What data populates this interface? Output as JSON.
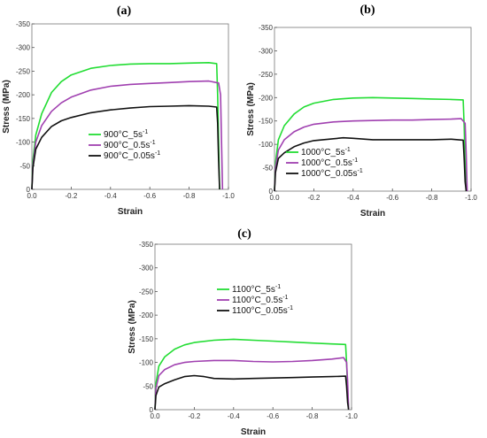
{
  "chart_data": [
    {
      "panel_label": "(a)",
      "type": "line",
      "xlabel": "Strain",
      "ylabel": "Stress (MPa)",
      "xlim": [
        0,
        -1.0
      ],
      "ylim": [
        0,
        -350
      ],
      "xticks": [
        0.0,
        -0.2,
        -0.4,
        -0.6,
        -0.8,
        -1.0
      ],
      "xtick_labels": [
        "0.0",
        "-0.2",
        "-0.4",
        "-0.6",
        "-0.8",
        "-1.0"
      ],
      "yticks": [
        0,
        -50,
        -100,
        -150,
        -200,
        -250,
        -300,
        -350
      ],
      "ytick_labels": [
        "0",
        "-50",
        "-100",
        "-150",
        "-200",
        "-250",
        "-300",
        "-350"
      ],
      "legend_position": "center-left",
      "series": [
        {
          "name": "900°C_5s",
          "name_sup": "-1",
          "color": "#22dd33",
          "points": [
            [
              0.0,
              0
            ],
            [
              -0.005,
              -60
            ],
            [
              -0.02,
              -115
            ],
            [
              -0.05,
              -160
            ],
            [
              -0.1,
              -205
            ],
            [
              -0.15,
              -228
            ],
            [
              -0.2,
              -242
            ],
            [
              -0.3,
              -256
            ],
            [
              -0.4,
              -262
            ],
            [
              -0.5,
              -265
            ],
            [
              -0.6,
              -266
            ],
            [
              -0.7,
              -266
            ],
            [
              -0.8,
              -267
            ],
            [
              -0.9,
              -268
            ],
            [
              -0.94,
              -266
            ],
            [
              -0.945,
              -200
            ],
            [
              -0.95,
              -100
            ],
            [
              -0.955,
              0
            ]
          ]
        },
        {
          "name": "900°C_0.5s",
          "name_sup": "-1",
          "color": "#a040b0",
          "points": [
            [
              0.0,
              0
            ],
            [
              -0.005,
              -50
            ],
            [
              -0.02,
              -100
            ],
            [
              -0.05,
              -135
            ],
            [
              -0.1,
              -165
            ],
            [
              -0.15,
              -183
            ],
            [
              -0.2,
              -195
            ],
            [
              -0.3,
              -210
            ],
            [
              -0.4,
              -218
            ],
            [
              -0.5,
              -222
            ],
            [
              -0.6,
              -224
            ],
            [
              -0.7,
              -226
            ],
            [
              -0.8,
              -228
            ],
            [
              -0.9,
              -229
            ],
            [
              -0.95,
              -225
            ],
            [
              -0.96,
              -200
            ],
            [
              -0.965,
              -100
            ],
            [
              -0.97,
              0
            ]
          ]
        },
        {
          "name": "900°C_0.05s",
          "name_sup": "-1",
          "color": "#111111",
          "points": [
            [
              0.0,
              0
            ],
            [
              -0.005,
              -45
            ],
            [
              -0.02,
              -85
            ],
            [
              -0.05,
              -110
            ],
            [
              -0.1,
              -133
            ],
            [
              -0.15,
              -145
            ],
            [
              -0.2,
              -152
            ],
            [
              -0.3,
              -162
            ],
            [
              -0.4,
              -168
            ],
            [
              -0.5,
              -172
            ],
            [
              -0.6,
              -175
            ],
            [
              -0.7,
              -176
            ],
            [
              -0.8,
              -177
            ],
            [
              -0.9,
              -176
            ],
            [
              -0.94,
              -174
            ],
            [
              -0.945,
              -140
            ],
            [
              -0.95,
              -60
            ],
            [
              -0.955,
              0
            ]
          ]
        }
      ]
    },
    {
      "panel_label": "(b)",
      "type": "line",
      "xlabel": "Strain",
      "ylabel": "Stress (MPa)",
      "xlim": [
        0,
        -1.0
      ],
      "ylim": [
        0,
        -350
      ],
      "xticks": [
        0.0,
        -0.2,
        -0.4,
        -0.6,
        -0.8,
        -1.0
      ],
      "xtick_labels": [
        "0.0",
        "-0.2",
        "-0.4",
        "-0.6",
        "-0.8",
        "-1.0"
      ],
      "yticks": [
        0,
        -50,
        -100,
        -150,
        -200,
        -250,
        -300,
        -350
      ],
      "ytick_labels": [
        "0",
        "-50",
        "-100",
        "-150",
        "-200",
        "-250",
        "-300",
        "-350"
      ],
      "legend_position": "bottom-right",
      "series": [
        {
          "name": "1000°C_5s",
          "name_sup": "-1",
          "color": "#22dd33",
          "points": [
            [
              0.0,
              0
            ],
            [
              -0.005,
              -60
            ],
            [
              -0.02,
              -110
            ],
            [
              -0.05,
              -140
            ],
            [
              -0.1,
              -165
            ],
            [
              -0.15,
              -180
            ],
            [
              -0.2,
              -188
            ],
            [
              -0.3,
              -196
            ],
            [
              -0.4,
              -199
            ],
            [
              -0.5,
              -200
            ],
            [
              -0.6,
              -199
            ],
            [
              -0.7,
              -198
            ],
            [
              -0.8,
              -197
            ],
            [
              -0.9,
              -196
            ],
            [
              -0.96,
              -195
            ],
            [
              -0.965,
              -140
            ],
            [
              -0.97,
              -60
            ],
            [
              -0.975,
              0
            ]
          ]
        },
        {
          "name": "1000°C_0.5s",
          "name_sup": "-1",
          "color": "#a040b0",
          "points": [
            [
              0.0,
              0
            ],
            [
              -0.005,
              -50
            ],
            [
              -0.02,
              -88
            ],
            [
              -0.05,
              -110
            ],
            [
              -0.1,
              -127
            ],
            [
              -0.15,
              -137
            ],
            [
              -0.2,
              -143
            ],
            [
              -0.3,
              -148
            ],
            [
              -0.4,
              -150
            ],
            [
              -0.5,
              -151
            ],
            [
              -0.6,
              -152
            ],
            [
              -0.7,
              -152
            ],
            [
              -0.8,
              -153
            ],
            [
              -0.9,
              -154
            ],
            [
              -0.95,
              -155
            ],
            [
              -0.97,
              -145
            ],
            [
              -0.975,
              -80
            ],
            [
              -0.98,
              0
            ]
          ]
        },
        {
          "name": "1000°C_0.05s",
          "name_sup": "-1",
          "color": "#111111",
          "points": [
            [
              0.0,
              0
            ],
            [
              -0.005,
              -40
            ],
            [
              -0.02,
              -70
            ],
            [
              -0.05,
              -82
            ],
            [
              -0.1,
              -95
            ],
            [
              -0.15,
              -103
            ],
            [
              -0.2,
              -108
            ],
            [
              -0.3,
              -112
            ],
            [
              -0.35,
              -114
            ],
            [
              -0.4,
              -113
            ],
            [
              -0.5,
              -110
            ],
            [
              -0.6,
              -110
            ],
            [
              -0.7,
              -110
            ],
            [
              -0.8,
              -110
            ],
            [
              -0.9,
              -111
            ],
            [
              -0.96,
              -109
            ],
            [
              -0.965,
              -70
            ],
            [
              -0.97,
              -20
            ],
            [
              -0.975,
              0
            ]
          ]
        }
      ]
    },
    {
      "panel_label": "(c)",
      "type": "line",
      "xlabel": "Strain",
      "ylabel": "Stress (MPa)",
      "xlim": [
        0,
        -1.0
      ],
      "ylim": [
        0,
        -350
      ],
      "xticks": [
        0.0,
        -0.2,
        -0.4,
        -0.6,
        -0.8,
        -1.0
      ],
      "xtick_labels": [
        "0.0",
        "-0.2",
        "-0.4",
        "-0.6",
        "-0.8",
        "-1.0"
      ],
      "yticks": [
        0,
        -50,
        -100,
        -150,
        -200,
        -250,
        -300,
        -350
      ],
      "ytick_labels": [
        "0",
        "-50",
        "-100",
        "-150",
        "-200",
        "-250",
        "-300",
        "-350"
      ],
      "legend_position": "center-right",
      "series": [
        {
          "name": "1100°C_5s",
          "name_sup": "-1",
          "color": "#22dd33",
          "points": [
            [
              0.0,
              0
            ],
            [
              -0.005,
              -55
            ],
            [
              -0.02,
              -92
            ],
            [
              -0.05,
              -112
            ],
            [
              -0.1,
              -128
            ],
            [
              -0.15,
              -137
            ],
            [
              -0.2,
              -142
            ],
            [
              -0.3,
              -147
            ],
            [
              -0.4,
              -149
            ],
            [
              -0.5,
              -147
            ],
            [
              -0.6,
              -145
            ],
            [
              -0.7,
              -143
            ],
            [
              -0.8,
              -141
            ],
            [
              -0.9,
              -139
            ],
            [
              -0.97,
              -138
            ],
            [
              -0.975,
              -100
            ],
            [
              -0.98,
              -40
            ],
            [
              -0.985,
              0
            ]
          ]
        },
        {
          "name": "1100°C_0.5s",
          "name_sup": "-1",
          "color": "#a040b0",
          "points": [
            [
              0.0,
              0
            ],
            [
              -0.005,
              -45
            ],
            [
              -0.02,
              -72
            ],
            [
              -0.05,
              -85
            ],
            [
              -0.1,
              -95
            ],
            [
              -0.15,
              -100
            ],
            [
              -0.2,
              -102
            ],
            [
              -0.3,
              -104
            ],
            [
              -0.4,
              -104
            ],
            [
              -0.5,
              -102
            ],
            [
              -0.6,
              -101
            ],
            [
              -0.7,
              -102
            ],
            [
              -0.8,
              -104
            ],
            [
              -0.9,
              -107
            ],
            [
              -0.96,
              -110
            ],
            [
              -0.975,
              -100
            ],
            [
              -0.98,
              -60
            ],
            [
              -0.985,
              0
            ]
          ]
        },
        {
          "name": "1100°C_0.05s",
          "name_sup": "-1",
          "color": "#111111",
          "points": [
            [
              0.0,
              0
            ],
            [
              -0.005,
              -30
            ],
            [
              -0.02,
              -48
            ],
            [
              -0.05,
              -55
            ],
            [
              -0.1,
              -63
            ],
            [
              -0.15,
              -70
            ],
            [
              -0.2,
              -72
            ],
            [
              -0.25,
              -70
            ],
            [
              -0.3,
              -66
            ],
            [
              -0.4,
              -65
            ],
            [
              -0.5,
              -66
            ],
            [
              -0.6,
              -67
            ],
            [
              -0.7,
              -68
            ],
            [
              -0.8,
              -69
            ],
            [
              -0.9,
              -70
            ],
            [
              -0.97,
              -71
            ],
            [
              -0.975,
              -50
            ],
            [
              -0.98,
              -15
            ],
            [
              -0.985,
              0
            ]
          ]
        }
      ]
    }
  ]
}
